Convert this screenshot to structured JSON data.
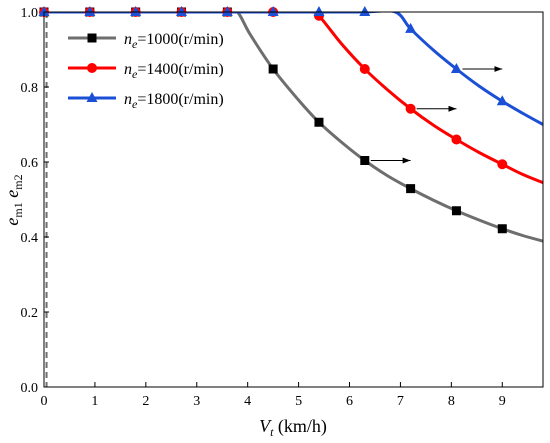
{
  "chart_data": {
    "type": "line",
    "xlim": [
      0,
      9.8
    ],
    "ylim": [
      0,
      1.0
    ],
    "x_ticks": [
      0,
      1,
      2,
      3,
      4,
      5,
      6,
      7,
      8,
      9
    ],
    "y_ticks": [
      0.0,
      0.2,
      0.4,
      0.6,
      0.8,
      1.0
    ],
    "y_tick_labels": [
      "0.0",
      "0.2",
      "0.4",
      "0.6",
      "0.8",
      "1.0"
    ],
    "xlabel": {
      "main": "V",
      "sub": "t",
      "rest": " (km/h)"
    },
    "ylabel": {
      "line1": "e",
      "sub1": "m1",
      "line2": "e",
      "sub2": "m2"
    },
    "legend_position": "top-left",
    "series": [
      {
        "name": "n_e=1000(r/min)",
        "label_main": "n",
        "label_sub": "e",
        "label_rest": "=1000(r/min)",
        "color": "#6e6e6e",
        "marker_color": "#000000",
        "marker": "square",
        "x": [
          0.0,
          0.45,
          0.9,
          1.35,
          1.8,
          2.25,
          2.7,
          3.15,
          3.6,
          3.8,
          4.05,
          4.5,
          5.0,
          5.4,
          5.85,
          6.3,
          6.75,
          7.2,
          7.65,
          8.1,
          8.55,
          9.0,
          9.4,
          9.8
        ],
        "y": [
          1.0,
          1.0,
          1.0,
          1.0,
          1.0,
          1.0,
          1.0,
          1.0,
          1.0,
          1.0,
          0.94,
          0.848,
          0.765,
          0.706,
          0.652,
          0.604,
          0.563,
          0.529,
          0.498,
          0.47,
          0.445,
          0.422,
          0.404,
          0.389
        ],
        "marker_x": [
          0.0,
          0.9,
          1.8,
          2.7,
          3.6,
          4.5,
          5.4,
          6.3,
          7.2,
          8.1,
          9.0
        ],
        "marker_y": [
          1.0,
          1.0,
          1.0,
          1.0,
          1.0,
          0.848,
          0.706,
          0.604,
          0.529,
          0.47,
          0.422
        ]
      },
      {
        "name": "n_e=1400(r/min)",
        "label_main": "n",
        "label_sub": "e",
        "label_rest": "=1400(r/min)",
        "color": "#ff0000",
        "marker_color": "#ff0000",
        "marker": "circle",
        "x": [
          0.0,
          0.9,
          1.8,
          2.7,
          3.6,
          4.5,
          5.25,
          5.4,
          5.85,
          6.3,
          6.75,
          7.2,
          7.65,
          8.1,
          8.55,
          9.0,
          9.4,
          9.8
        ],
        "y": [
          1.0,
          1.0,
          1.0,
          1.0,
          1.0,
          1.0,
          1.0,
          0.99,
          0.914,
          0.848,
          0.792,
          0.742,
          0.698,
          0.66,
          0.625,
          0.594,
          0.567,
          0.545
        ],
        "marker_x": [
          0.0,
          0.9,
          1.8,
          2.7,
          3.6,
          4.5,
          5.4,
          6.3,
          7.2,
          8.1,
          9.0
        ],
        "marker_y": [
          1.0,
          1.0,
          1.0,
          1.0,
          1.0,
          1.0,
          0.99,
          0.848,
          0.742,
          0.66,
          0.594
        ]
      },
      {
        "name": "n_e=1800(r/min)",
        "label_main": "n",
        "label_sub": "e",
        "label_rest": "=1800(r/min)",
        "color": "#1a4fd6",
        "marker_color": "#1a4fd6",
        "marker": "triangle",
        "x": [
          0.0,
          0.9,
          1.8,
          2.7,
          3.6,
          4.5,
          5.4,
          6.3,
          6.9,
          7.2,
          7.65,
          8.1,
          8.55,
          9.0,
          9.4,
          9.8
        ],
        "y": [
          1.0,
          1.0,
          1.0,
          1.0,
          1.0,
          1.0,
          1.0,
          1.0,
          1.0,
          0.955,
          0.898,
          0.848,
          0.802,
          0.762,
          0.73,
          0.7
        ],
        "marker_x": [
          0.0,
          0.9,
          1.8,
          2.7,
          3.6,
          4.5,
          5.4,
          6.3,
          7.2,
          8.1,
          9.0
        ],
        "marker_y": [
          1.0,
          1.0,
          1.0,
          1.0,
          1.0,
          1.0,
          1.0,
          1.0,
          0.955,
          0.848,
          0.762
        ]
      }
    ],
    "arrows": [
      {
        "from": [
          6.3,
          0.604
        ],
        "to": [
          7.2,
          0.604
        ]
      },
      {
        "from": [
          7.2,
          0.742
        ],
        "to": [
          8.1,
          0.742
        ]
      },
      {
        "from": [
          8.1,
          0.848
        ],
        "to": [
          9.0,
          0.848
        ]
      }
    ]
  }
}
